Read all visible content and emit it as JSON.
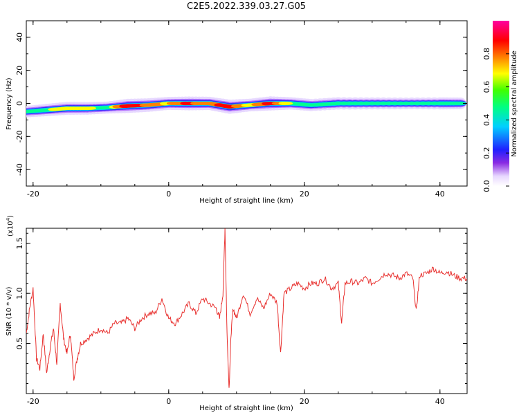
{
  "title": "C2E5.2022.339.03.27.G05",
  "colors": {
    "snr_line": "#e8302e",
    "axes": "#000000",
    "background": "#ffffff"
  },
  "chart_data": [
    {
      "type": "heatmap",
      "xlabel": "Height of straight line (km)",
      "ylabel": "Frequency (Hz)",
      "xlim": [
        -21,
        44
      ],
      "ylim": [
        -50,
        50
      ],
      "x_ticks": [
        "-20",
        "0",
        "20",
        "40"
      ],
      "y_ticks": [
        "40",
        "20",
        "0",
        "-20",
        "-40"
      ],
      "colorbar": {
        "label": "Normalized spectral amplitude",
        "range": [
          0,
          1
        ],
        "ticks": [
          "0.0",
          "0.2",
          "0.4",
          "0.6",
          "0.8"
        ],
        "colormap": "rainbow (white-purple-blue-cyan-green-yellow-red-magenta)"
      },
      "ridge": {
        "x": [
          -21,
          -18,
          -15,
          -12,
          -9,
          -6,
          -3,
          0,
          3,
          6,
          9,
          12,
          15,
          18,
          21,
          25,
          30,
          35,
          40,
          43
        ],
        "frequency": [
          -5,
          -4,
          -3,
          -3,
          -2.5,
          -1.5,
          -1,
          0,
          0,
          0,
          -2,
          -1,
          0,
          0,
          -1,
          0,
          0,
          0,
          0,
          0
        ],
        "amplitude": [
          0.45,
          0.6,
          0.7,
          0.65,
          0.55,
          0.9,
          0.8,
          0.7,
          0.85,
          0.75,
          0.9,
          0.65,
          0.9,
          0.6,
          0.55,
          0.6,
          0.55,
          0.5,
          0.55,
          0.5
        ]
      }
    },
    {
      "type": "line",
      "xlabel": "Height of straight line (km)",
      "ylabel": "SNR (10 * v/v)",
      "y_multiplier": "(x10",
      "y_multiplier_exp": "4",
      "xlim": [
        -21,
        44
      ],
      "ylim": [
        0,
        1.65
      ],
      "x_ticks": [
        "-20",
        "0",
        "20",
        "40"
      ],
      "y_ticks": [
        "1.5",
        "1.0",
        "0.5"
      ],
      "series": [
        {
          "x": [
            -21,
            -20.5,
            -20,
            -19.5,
            -19,
            -18.5,
            -18,
            -17.5,
            -17,
            -16.5,
            -16,
            -15.5,
            -15,
            -14.5,
            -14,
            -13.5,
            -13,
            -12,
            -11,
            -10,
            -9,
            -8,
            -7,
            -6,
            -5,
            -4,
            -3,
            -2,
            -1,
            0,
            1,
            2,
            3,
            4,
            5,
            6,
            7,
            7.5,
            8,
            8.3,
            8.6,
            8.9,
            9.2,
            9.5,
            10,
            11,
            12,
            13,
            14,
            15,
            16,
            16.5,
            17,
            18,
            19,
            20,
            21,
            22,
            23,
            24,
            25,
            25.5,
            26,
            27,
            28,
            29,
            30,
            31,
            32,
            33,
            34,
            35,
            36,
            36.5,
            37,
            38,
            39,
            40,
            41,
            42,
            43,
            44
          ],
          "y": [
            0.6,
            0.85,
            1.05,
            0.35,
            0.25,
            0.6,
            0.2,
            0.45,
            0.65,
            0.3,
            0.9,
            0.55,
            0.4,
            0.6,
            0.15,
            0.35,
            0.5,
            0.55,
            0.6,
            0.65,
            0.6,
            0.7,
            0.7,
            0.75,
            0.65,
            0.75,
            0.8,
            0.8,
            0.95,
            0.75,
            0.7,
            0.8,
            0.9,
            0.8,
            0.95,
            0.9,
            0.85,
            0.75,
            1.0,
            1.65,
            0.6,
            0.05,
            0.6,
            0.85,
            0.75,
            1.0,
            0.8,
            0.95,
            0.85,
            1.0,
            0.9,
            0.4,
            1.0,
            1.05,
            1.1,
            1.05,
            1.1,
            1.1,
            1.15,
            1.05,
            1.1,
            0.7,
            1.1,
            1.12,
            1.1,
            1.15,
            1.1,
            1.15,
            1.2,
            1.18,
            1.15,
            1.2,
            1.15,
            0.82,
            1.18,
            1.2,
            1.25,
            1.2,
            1.22,
            1.18,
            1.15,
            1.15
          ]
        }
      ]
    }
  ]
}
